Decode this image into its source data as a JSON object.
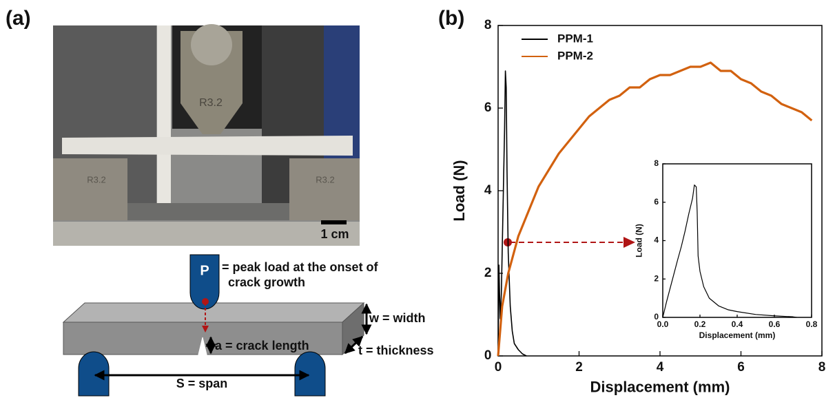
{
  "panel_labels": [
    "(a)",
    "(b)"
  ],
  "photo": {
    "fixture_labels": [
      "R3.2",
      "R3.2",
      "R3.2"
    ],
    "scale_bar": "1 cm"
  },
  "schematic": {
    "load_symbol": "P",
    "load_text": [
      "= peak load at the onset of",
      "crack growth"
    ],
    "width": "w = width",
    "crack": "a = crack length",
    "thickness": "t = thickness",
    "span": "S = span"
  },
  "chart_data": [
    {
      "type": "line",
      "xlabel": "Displacement (mm)",
      "ylabel": "Load (N)",
      "xlim": [
        0,
        8
      ],
      "ylim": [
        0,
        8
      ],
      "xticks": [
        0,
        2,
        4,
        6,
        8
      ],
      "yticks": [
        0,
        2,
        4,
        6,
        8
      ],
      "legend": "upper left",
      "series": [
        {
          "name": "PPM-1",
          "color": "#000000",
          "x": [
            0,
            0.02,
            0.05,
            0.08,
            0.1,
            0.13,
            0.16,
            0.18,
            0.2,
            0.22,
            0.25,
            0.3,
            0.35,
            0.4,
            0.5,
            0.6,
            0.7
          ],
          "values": [
            0,
            2.2,
            0.9,
            1.5,
            2.5,
            4,
            5.5,
            6.9,
            6.5,
            4.5,
            2.5,
            1.2,
            0.6,
            0.3,
            0.15,
            0.05,
            0
          ]
        },
        {
          "name": "PPM-2",
          "color": "#d2610f",
          "x": [
            0,
            0.1,
            0.25,
            0.5,
            0.75,
            1,
            1.25,
            1.5,
            1.75,
            2,
            2.25,
            2.5,
            2.75,
            3,
            3.25,
            3.5,
            3.75,
            4,
            4.25,
            4.5,
            4.75,
            5,
            5.25,
            5.5,
            5.75,
            6,
            6.25,
            6.5,
            6.75,
            7,
            7.25,
            7.5,
            7.75
          ],
          "values": [
            0,
            1.2,
            2.0,
            2.9,
            3.5,
            4.1,
            4.5,
            4.9,
            5.2,
            5.5,
            5.8,
            6.0,
            6.2,
            6.3,
            6.5,
            6.5,
            6.7,
            6.8,
            6.8,
            6.9,
            7.0,
            7.0,
            7.1,
            6.9,
            6.9,
            6.7,
            6.6,
            6.4,
            6.3,
            6.1,
            6.0,
            5.9,
            5.7
          ]
        }
      ]
    },
    {
      "type": "line",
      "xlabel": "Displacement (mm)",
      "ylabel": "Load (N)",
      "xlim": [
        0,
        0.8
      ],
      "ylim": [
        0,
        8
      ],
      "xticks": [
        {
          "value": 0,
          "label": "0.0"
        },
        0.2,
        0.4,
        0.6,
        0.8
      ],
      "yticks": [
        0,
        2,
        4,
        6,
        8
      ],
      "series": [
        {
          "color": "#000000",
          "x": [
            0,
            0.02,
            0.05,
            0.08,
            0.1,
            0.12,
            0.14,
            0.16,
            0.17,
            0.18,
            0.185,
            0.19,
            0.2,
            0.22,
            0.25,
            0.3,
            0.35,
            0.4,
            0.5,
            0.6,
            0.7,
            0.72
          ],
          "values": [
            0,
            0.8,
            1.9,
            3.0,
            3.7,
            4.5,
            5.4,
            6.2,
            6.9,
            6.8,
            5.5,
            3.2,
            2.4,
            1.6,
            1.0,
            0.6,
            0.4,
            0.3,
            0.15,
            0.08,
            0.03,
            0
          ]
        }
      ]
    }
  ]
}
